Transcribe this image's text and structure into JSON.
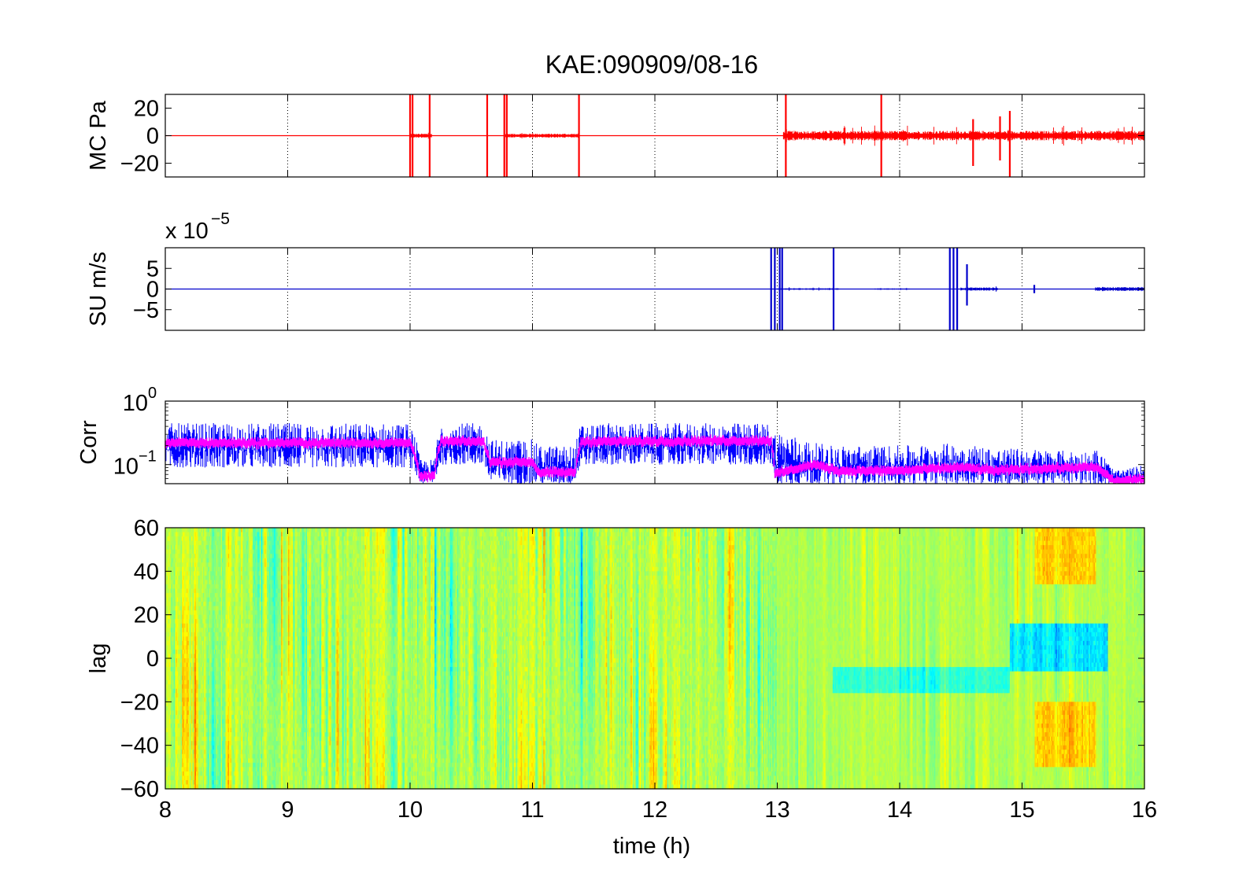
{
  "figure": {
    "title": "KAE:090909/08-16",
    "xlabel": "time (h)",
    "x_ticks": [
      "8",
      "9",
      "10",
      "11",
      "12",
      "13",
      "14",
      "15",
      "16"
    ]
  },
  "chart_data": [
    {
      "type": "line",
      "panel": "MC",
      "ylabel": "MC Pa",
      "xlim": [
        8,
        16
      ],
      "ylim": [
        -30,
        30
      ],
      "y_ticks": [
        20,
        0,
        -20
      ],
      "y_tick_labels": [
        "20",
        "0",
        "−20"
      ],
      "grid": "x-dotted",
      "series": [
        {
          "color": "#ff0000",
          "baseline": 0,
          "noise_segments": [
            {
              "x": [
                10.0,
                10.18
              ],
              "amplitude": 1.5
            },
            {
              "x": [
                10.78,
                11.38
              ],
              "amplitude": 1.5
            },
            {
              "x": [
                13.05,
                16.0
              ],
              "amplitude": 3.5
            }
          ],
          "spikes": [
            {
              "x": 10.0,
              "ymin": -30,
              "ymax": 30
            },
            {
              "x": 10.02,
              "ymin": -30,
              "ymax": 30
            },
            {
              "x": 10.16,
              "ymin": -30,
              "ymax": 30
            },
            {
              "x": 10.63,
              "ymin": -30,
              "ymax": 30
            },
            {
              "x": 10.77,
              "ymin": -30,
              "ymax": 30
            },
            {
              "x": 10.79,
              "ymin": -30,
              "ymax": 30
            },
            {
              "x": 11.38,
              "ymin": -30,
              "ymax": 30
            },
            {
              "x": 13.07,
              "ymin": -30,
              "ymax": 30
            },
            {
              "x": 13.85,
              "ymin": -30,
              "ymax": 30
            },
            {
              "x": 14.6,
              "ymin": -22,
              "ymax": 12
            },
            {
              "x": 14.82,
              "ymin": -18,
              "ymax": 14
            },
            {
              "x": 14.9,
              "ymin": -30,
              "ymax": 18
            }
          ]
        }
      ]
    },
    {
      "type": "line",
      "panel": "SU",
      "ylabel": "SU m/s",
      "y_multiplier_base": "x 10",
      "y_multiplier_exponent": "−5",
      "xlim": [
        8,
        16
      ],
      "ylim": [
        -0.0001,
        0.0001
      ],
      "y_ticks": [
        5e-05,
        0,
        -5e-05
      ],
      "y_tick_labels": [
        "5",
        "0",
        "−5"
      ],
      "grid": "x-dotted",
      "series": [
        {
          "color": "#0000cc",
          "baseline": 0,
          "noise_segments": [
            {
              "x": [
                13.0,
                13.5
              ],
              "amplitude": 2e-06
            },
            {
              "x": [
                13.8,
                14.1
              ],
              "amplitude": 1.5e-06
            },
            {
              "x": [
                14.5,
                14.8
              ],
              "amplitude": 4e-06
            },
            {
              "x": [
                15.6,
                16.0
              ],
              "amplitude": 5e-06
            }
          ],
          "spikes": [
            {
              "x": 12.95,
              "ymin": -0.0001,
              "ymax": 0.0001
            },
            {
              "x": 12.98,
              "ymin": -0.0001,
              "ymax": 0.0001
            },
            {
              "x": 13.02,
              "ymin": -0.0001,
              "ymax": 0.0001
            },
            {
              "x": 13.04,
              "ymin": -0.0001,
              "ymax": 0.0001
            },
            {
              "x": 13.46,
              "ymin": -0.0001,
              "ymax": 0.0001
            },
            {
              "x": 14.41,
              "ymin": -0.0001,
              "ymax": 0.0001
            },
            {
              "x": 14.44,
              "ymin": -0.0001,
              "ymax": 0.0001
            },
            {
              "x": 14.47,
              "ymin": -0.0001,
              "ymax": 0.0001
            },
            {
              "x": 14.55,
              "ymin": -4e-05,
              "ymax": 6e-05
            },
            {
              "x": 15.1,
              "ymin": -1e-05,
              "ymax": 1e-05
            }
          ]
        }
      ]
    },
    {
      "type": "line",
      "panel": "Corr",
      "ylabel": "Corr",
      "y_scale": "log",
      "xlim": [
        8,
        16
      ],
      "ylim": [
        0.05,
        1
      ],
      "y_ticks": [
        1,
        0.1
      ],
      "y_tick_base": "10",
      "y_tick_exponents": [
        "0",
        "−1"
      ],
      "grid": "x-dotted",
      "series": [
        {
          "name": "raw",
          "color": "#0000ff",
          "x": [
            8.0,
            10.0,
            10.08,
            10.2,
            10.25,
            10.6,
            10.65,
            11.0,
            11.05,
            11.35,
            11.4,
            12.95,
            12.98,
            13.3,
            13.5,
            14.0,
            14.5,
            14.8,
            15.0,
            15.5,
            15.6,
            15.75,
            15.8,
            16.0
          ],
          "center": [
            0.22,
            0.22,
            0.06,
            0.06,
            0.23,
            0.23,
            0.1,
            0.1,
            0.06,
            0.06,
            0.23,
            0.24,
            0.06,
            0.09,
            0.07,
            0.07,
            0.09,
            0.07,
            0.08,
            0.08,
            0.09,
            0.05,
            0.05,
            0.06
          ],
          "low": [
            0.09,
            0.09,
            0.05,
            0.05,
            0.1,
            0.1,
            0.05,
            0.05,
            0.05,
            0.05,
            0.1,
            0.1,
            0.05,
            0.05,
            0.05,
            0.05,
            0.05,
            0.05,
            0.05,
            0.05,
            0.05,
            0.05,
            0.05,
            0.05
          ],
          "high": [
            0.45,
            0.45,
            0.12,
            0.12,
            0.45,
            0.45,
            0.25,
            0.25,
            0.2,
            0.2,
            0.45,
            0.45,
            0.35,
            0.22,
            0.2,
            0.2,
            0.22,
            0.18,
            0.18,
            0.16,
            0.18,
            0.08,
            0.08,
            0.1
          ]
        },
        {
          "name": "smoothed",
          "color": "#ff00ff",
          "x": [
            8.0,
            10.0,
            10.08,
            10.2,
            10.25,
            10.6,
            10.65,
            11.0,
            11.05,
            11.35,
            11.4,
            12.95,
            12.98,
            13.3,
            13.5,
            14.0,
            14.5,
            14.8,
            15.0,
            15.5,
            15.6,
            15.75,
            15.8,
            16.0
          ],
          "center": [
            0.22,
            0.22,
            0.065,
            0.065,
            0.23,
            0.23,
            0.11,
            0.11,
            0.075,
            0.075,
            0.23,
            0.24,
            0.07,
            0.1,
            0.08,
            0.08,
            0.09,
            0.08,
            0.085,
            0.09,
            0.09,
            0.055,
            0.055,
            0.06
          ],
          "band": 0.15
        }
      ]
    },
    {
      "type": "heatmap",
      "panel": "lag",
      "ylabel": "lag",
      "xlim": [
        8,
        16
      ],
      "ylim": [
        -60,
        60
      ],
      "y_ticks": [
        60,
        40,
        20,
        0,
        -20,
        -40,
        -60
      ],
      "y_tick_labels": [
        "60",
        "40",
        "20",
        "0",
        "−20",
        "−40",
        "−60"
      ],
      "colormap": "jet",
      "features": [
        {
          "x": [
            8.0,
            13.0
          ],
          "lag": [
            -60,
            60
          ],
          "pattern": "vertical-stripes",
          "intensity": 1.0
        },
        {
          "x": [
            13.0,
            16.0
          ],
          "lag": [
            -60,
            60
          ],
          "pattern": "vertical-stripes",
          "intensity": 0.45
        },
        {
          "x": [
            13.45,
            14.9
          ],
          "lag": [
            -15,
            -5
          ],
          "pattern": "cyan-band"
        },
        {
          "x": [
            14.9,
            15.7
          ],
          "lag": [
            -5,
            15
          ],
          "pattern": "blue-patch"
        },
        {
          "x": [
            15.1,
            15.6
          ],
          "lag": [
            -50,
            -20
          ],
          "pattern": "yellow-patch"
        },
        {
          "x": [
            15.1,
            15.6
          ],
          "lag": [
            35,
            60
          ],
          "pattern": "yellow-patch"
        }
      ]
    }
  ]
}
